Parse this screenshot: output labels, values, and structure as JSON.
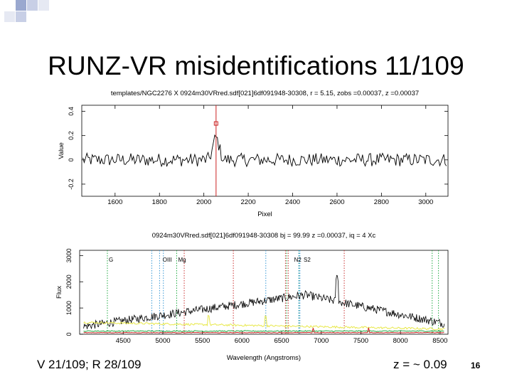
{
  "slide": {
    "title": "RUNZ-VR misidentifications 11/109",
    "footer_left": "V  21/109; R  28/109",
    "footer_right": "z = ~ 0.09",
    "page_number": "16",
    "accent_square_colors": [
      "#9aa8cf",
      "#c8cfe6",
      "#e6e9f3"
    ]
  },
  "chart_data": [
    {
      "type": "line",
      "title": "templates/NGC2276 X 0924m30VRred.sdf[021]6df091948-30308, r = 5.15, zobs =0.00037, z =0.00037",
      "xlabel": "Pixel",
      "ylabel": "Value",
      "xlim": [
        1450,
        3100
      ],
      "ylim": [
        -0.3,
        0.45
      ],
      "xticks": [
        1600,
        1800,
        2000,
        2200,
        2400,
        2600,
        2800,
        3000
      ],
      "xtick_labels": [
        "1600",
        "1800",
        "2000",
        "2200",
        "2400",
        "2600",
        "2800",
        "3000"
      ],
      "yticks": [
        -0.2,
        0,
        0.2,
        0.4
      ],
      "ytick_labels": [
        "-0.2",
        "0",
        "0.2",
        "0.4"
      ],
      "peak": {
        "x": 2055,
        "y": 0.18
      },
      "marker_line_x": 2055,
      "marker_color": "#cc2222",
      "line_color": "#000000",
      "grid": false
    },
    {
      "type": "line",
      "title": "0924m30VRred.sdf[021]6df091948-30308    bj = 99.99  z =0.00037, iq =  4 Xc",
      "xlabel": "Wavelength (Angstroms)",
      "ylabel": "Flux",
      "xlim": [
        3950,
        8600
      ],
      "ylim": [
        0,
        3200
      ],
      "xticks": [
        4500,
        5000,
        5500,
        6000,
        6500,
        7000,
        7500,
        8000,
        8500
      ],
      "xtick_labels": [
        "4500",
        "5000",
        "5500",
        "6000",
        "6500",
        "7000",
        "7500",
        "8000",
        "8500"
      ],
      "yticks": [
        0,
        1000,
        2000,
        3000
      ],
      "ytick_labels": [
        "0",
        "1000",
        "2000",
        "3000"
      ],
      "line_labels": [
        "G",
        "OIII",
        "Mg",
        "N2",
        "S2"
      ],
      "line_colors": {
        "green": "#22aa44",
        "blue": "#3a9ad6",
        "red": "#cc3333"
      },
      "series": [
        {
          "values_kind": "flux",
          "color": "#000000"
        },
        {
          "values_kind": "sky",
          "color": "#e8e84a"
        },
        {
          "values_kind": "noise",
          "color": "#22aa44"
        },
        {
          "values_kind": "template",
          "color": "#cc2222"
        }
      ],
      "grid": false
    }
  ]
}
